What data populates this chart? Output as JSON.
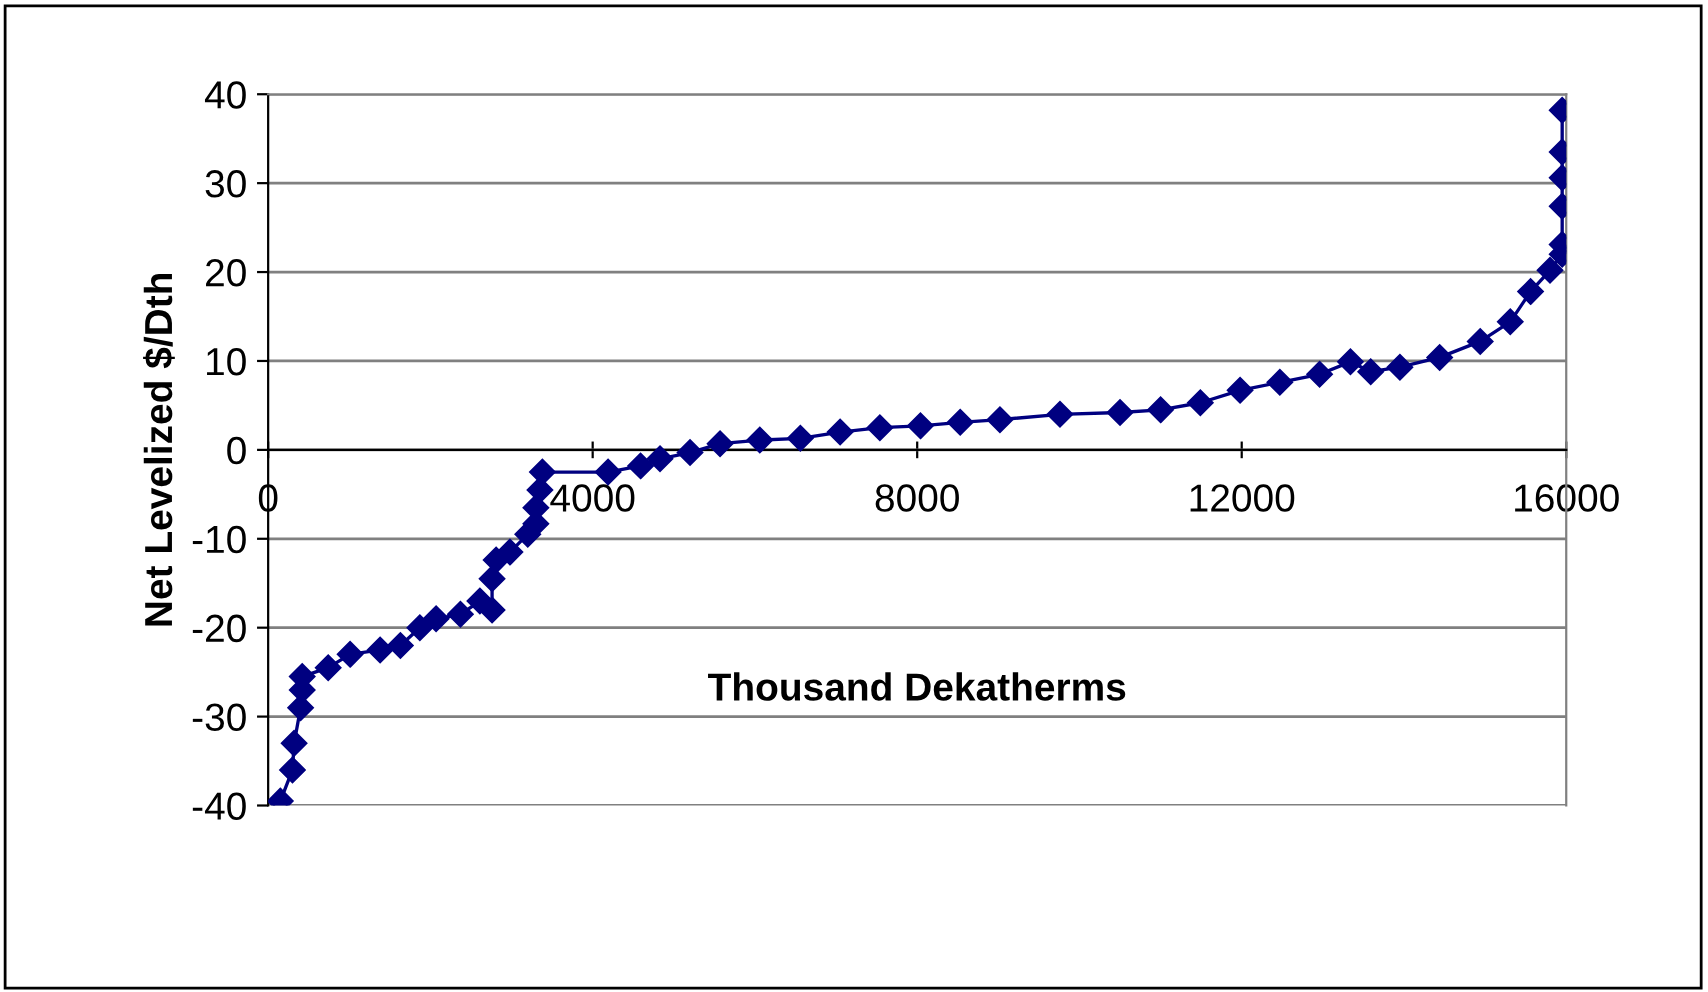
{
  "chart_data": {
    "type": "line",
    "xlabel": "Thousand Dekatherms",
    "ylabel": "Net Levelized $/Dth",
    "xlim": [
      0,
      16000
    ],
    "ylim": [
      -40,
      40
    ],
    "xticks": [
      0,
      4000,
      8000,
      12000,
      16000
    ],
    "yticks": [
      -40,
      -30,
      -20,
      -10,
      0,
      10,
      20,
      30,
      40
    ],
    "grid": "y",
    "marker": "diamond",
    "line_style": "solid",
    "legend": false,
    "series": [
      {
        "color": "#000080",
        "x": [
          150,
          300,
          320,
          400,
          420,
          420,
          740,
          1010,
          1380,
          1630,
          1870,
          2070,
          2370,
          2610,
          2760,
          2760,
          2810,
          2980,
          3200,
          3300,
          3300,
          3350,
          3380,
          4190,
          4590,
          4830,
          5200,
          5570,
          6060,
          6560,
          7050,
          7540,
          8040,
          8530,
          9020,
          9760,
          10500,
          11000,
          11490,
          11980,
          12470,
          12960,
          13340,
          13590,
          13950,
          14440,
          14940,
          15310,
          15560,
          15800,
          15950,
          15950,
          15950,
          15950,
          15950,
          15950
        ],
        "values": [
          -39.5,
          -36,
          -33,
          -29,
          -27,
          -25.5,
          -24.5,
          -23,
          -22.5,
          -22,
          -20,
          -19,
          -18.5,
          -17,
          -18,
          -14.5,
          -12.4,
          -11.5,
          -9.5,
          -8.3,
          -6.5,
          -4.5,
          -2.5,
          -2.5,
          -1.8,
          -1,
          -0.3,
          0.7,
          1.1,
          1.3,
          2,
          2.5,
          2.7,
          3.1,
          3.4,
          4,
          4.2,
          4.5,
          5.3,
          6.7,
          7.6,
          8.5,
          9.9,
          8.8,
          9.3,
          10.4,
          12.2,
          14.4,
          17.8,
          20.2,
          22,
          23.1,
          27.4,
          30.6,
          33.5,
          38.2
        ]
      }
    ]
  }
}
